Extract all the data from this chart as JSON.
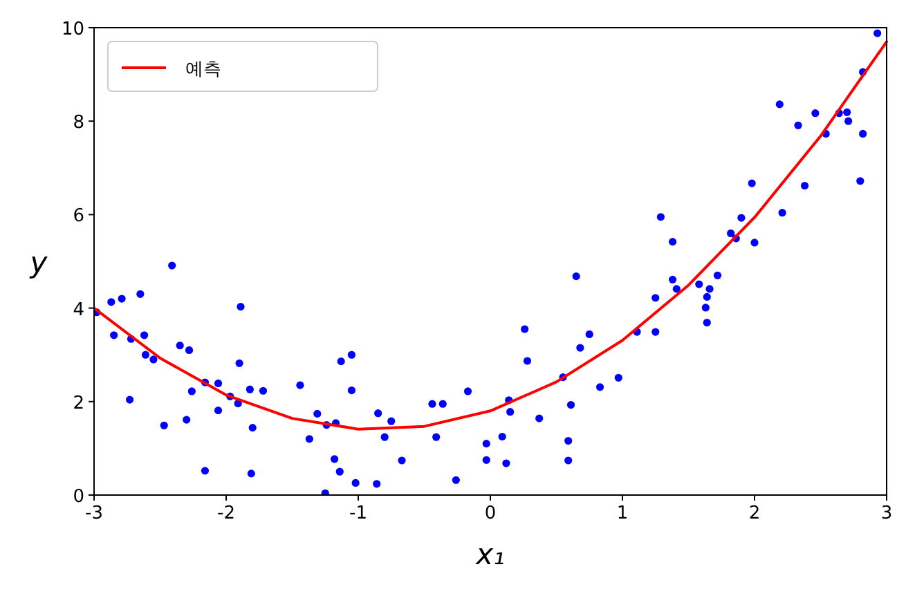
{
  "chart_data": {
    "type": "scatter",
    "xlabel": "x₁",
    "ylabel": "y",
    "xlim": [
      -3,
      3
    ],
    "ylim": [
      0,
      10
    ],
    "xticks": [
      -3,
      -2,
      -1,
      0,
      1,
      2,
      3
    ],
    "yticks": [
      0,
      2,
      4,
      6,
      8,
      10
    ],
    "legend": "top left",
    "grid": false,
    "series": [
      {
        "color": "#0000ff",
        "marker": "circle",
        "x": [
          -2.98,
          -2.87,
          -2.79,
          -2.85,
          -2.65,
          -2.73,
          -2.72,
          -2.62,
          -2.61,
          -2.55,
          -2.41,
          -2.47,
          -2.35,
          -2.28,
          -2.3,
          -2.26,
          -2.16,
          -2.06,
          -2.06,
          -2.16,
          -1.97,
          -1.91,
          -1.89,
          -1.9,
          -1.82,
          -1.8,
          -1.72,
          -1.81,
          -1.44,
          -1.31,
          -1.37,
          -1.24,
          -1.17,
          -1.18,
          -1.14,
          -1.25,
          -1.13,
          -1.05,
          -1.05,
          -1.02,
          -0.85,
          -0.75,
          -0.8,
          -0.86,
          -0.67,
          -0.44,
          -0.36,
          -0.41,
          -0.26,
          -0.17,
          -0.03,
          -0.03,
          0.09,
          0.12,
          0.14,
          0.15,
          0.26,
          0.28,
          0.37,
          0.55,
          0.61,
          0.59,
          0.59,
          0.65,
          0.68,
          0.75,
          0.83,
          0.97,
          1.11,
          1.25,
          1.25,
          1.29,
          1.38,
          1.38,
          1.41,
          1.58,
          1.64,
          1.63,
          1.64,
          1.66,
          1.72,
          1.82,
          1.86,
          1.9,
          1.98,
          2.0,
          2.19,
          2.21,
          2.33,
          2.38,
          2.46,
          2.54,
          2.64,
          2.7,
          2.71,
          2.8,
          2.82,
          2.82,
          2.93
        ],
        "values": [
          3.91,
          4.13,
          4.2,
          3.42,
          4.3,
          2.04,
          3.34,
          3.42,
          3.0,
          2.9,
          4.91,
          1.49,
          3.2,
          3.1,
          1.61,
          2.22,
          2.41,
          2.39,
          1.81,
          0.52,
          2.11,
          1.96,
          4.03,
          2.82,
          2.26,
          1.44,
          2.23,
          0.46,
          2.35,
          1.74,
          1.2,
          1.5,
          1.54,
          0.77,
          0.5,
          0.04,
          2.86,
          3.0,
          2.24,
          0.26,
          1.75,
          1.58,
          1.24,
          0.24,
          0.74,
          1.95,
          1.95,
          1.24,
          0.32,
          2.22,
          1.1,
          0.75,
          1.25,
          0.68,
          2.03,
          1.78,
          3.55,
          2.87,
          1.64,
          2.52,
          1.93,
          1.16,
          0.74,
          4.68,
          3.15,
          3.44,
          2.31,
          2.51,
          3.49,
          3.49,
          4.22,
          5.95,
          5.42,
          4.61,
          4.41,
          4.51,
          3.69,
          4.01,
          4.24,
          4.41,
          4.7,
          5.6,
          5.49,
          5.93,
          6.67,
          5.4,
          8.36,
          6.04,
          7.91,
          6.62,
          8.17,
          7.73,
          8.17,
          8.19,
          8.0,
          6.72,
          7.73,
          9.05,
          9.88
        ]
      },
      {
        "type": "line",
        "name": "예측",
        "color": "#ff0000",
        "line_style": "solid",
        "x": [
          -3,
          -2.5,
          -2,
          -1.5,
          -1,
          -0.5,
          0,
          0.5,
          1,
          1.5,
          2,
          2.5,
          3
        ],
        "values": [
          4.0,
          2.93,
          2.14,
          1.64,
          1.41,
          1.47,
          1.8,
          2.42,
          3.31,
          4.49,
          5.94,
          7.68,
          9.7
        ]
      }
    ]
  }
}
